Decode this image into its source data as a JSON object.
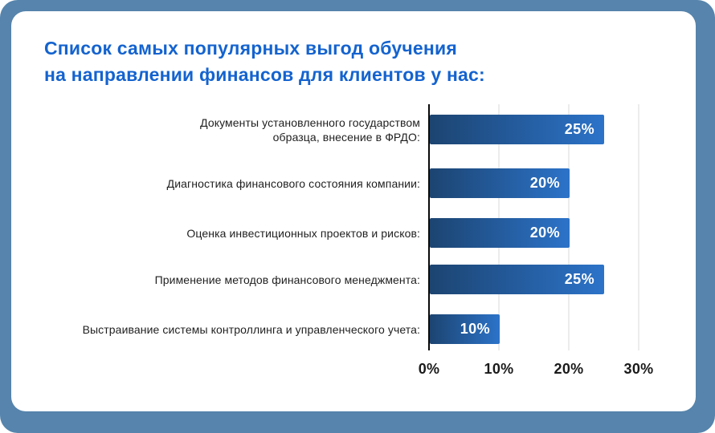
{
  "frame": {
    "background_color": "#5684ac",
    "card_background_color": "#ffffff"
  },
  "title": {
    "line1": "Список самых популярных выгод обучения",
    "line2": "на направлении финансов для клиентов у нас:",
    "color": "#1463cf"
  },
  "chart_data": {
    "type": "bar",
    "orientation": "horizontal",
    "categories": [
      "Документы установленного государством\nобразца, внесение в ФРДО:",
      "Диагностика финансового состояния компании:",
      "Оценка инвестиционных проектов и рисков:",
      "Применение методов финансового менеджмента:",
      "Выстраивание системы контроллинга и управленческого учета:"
    ],
    "values": [
      25,
      20,
      20,
      25,
      10
    ],
    "value_labels": [
      "25%",
      "20%",
      "20%",
      "25%",
      "10%"
    ],
    "ticks": [
      "0%",
      "10%",
      "20%",
      "30%"
    ],
    "tick_values": [
      0,
      10,
      20,
      30
    ],
    "xlim": [
      0,
      30
    ],
    "xlabel": "",
    "ylabel": "",
    "grid": "vertical-light",
    "bar_gradient_start": "#1c4471",
    "bar_gradient_end": "#2c73c9",
    "value_label_color": "#ffffff",
    "axis_line_color": "#0a0a0a",
    "gridline_color": "#ececec"
  }
}
